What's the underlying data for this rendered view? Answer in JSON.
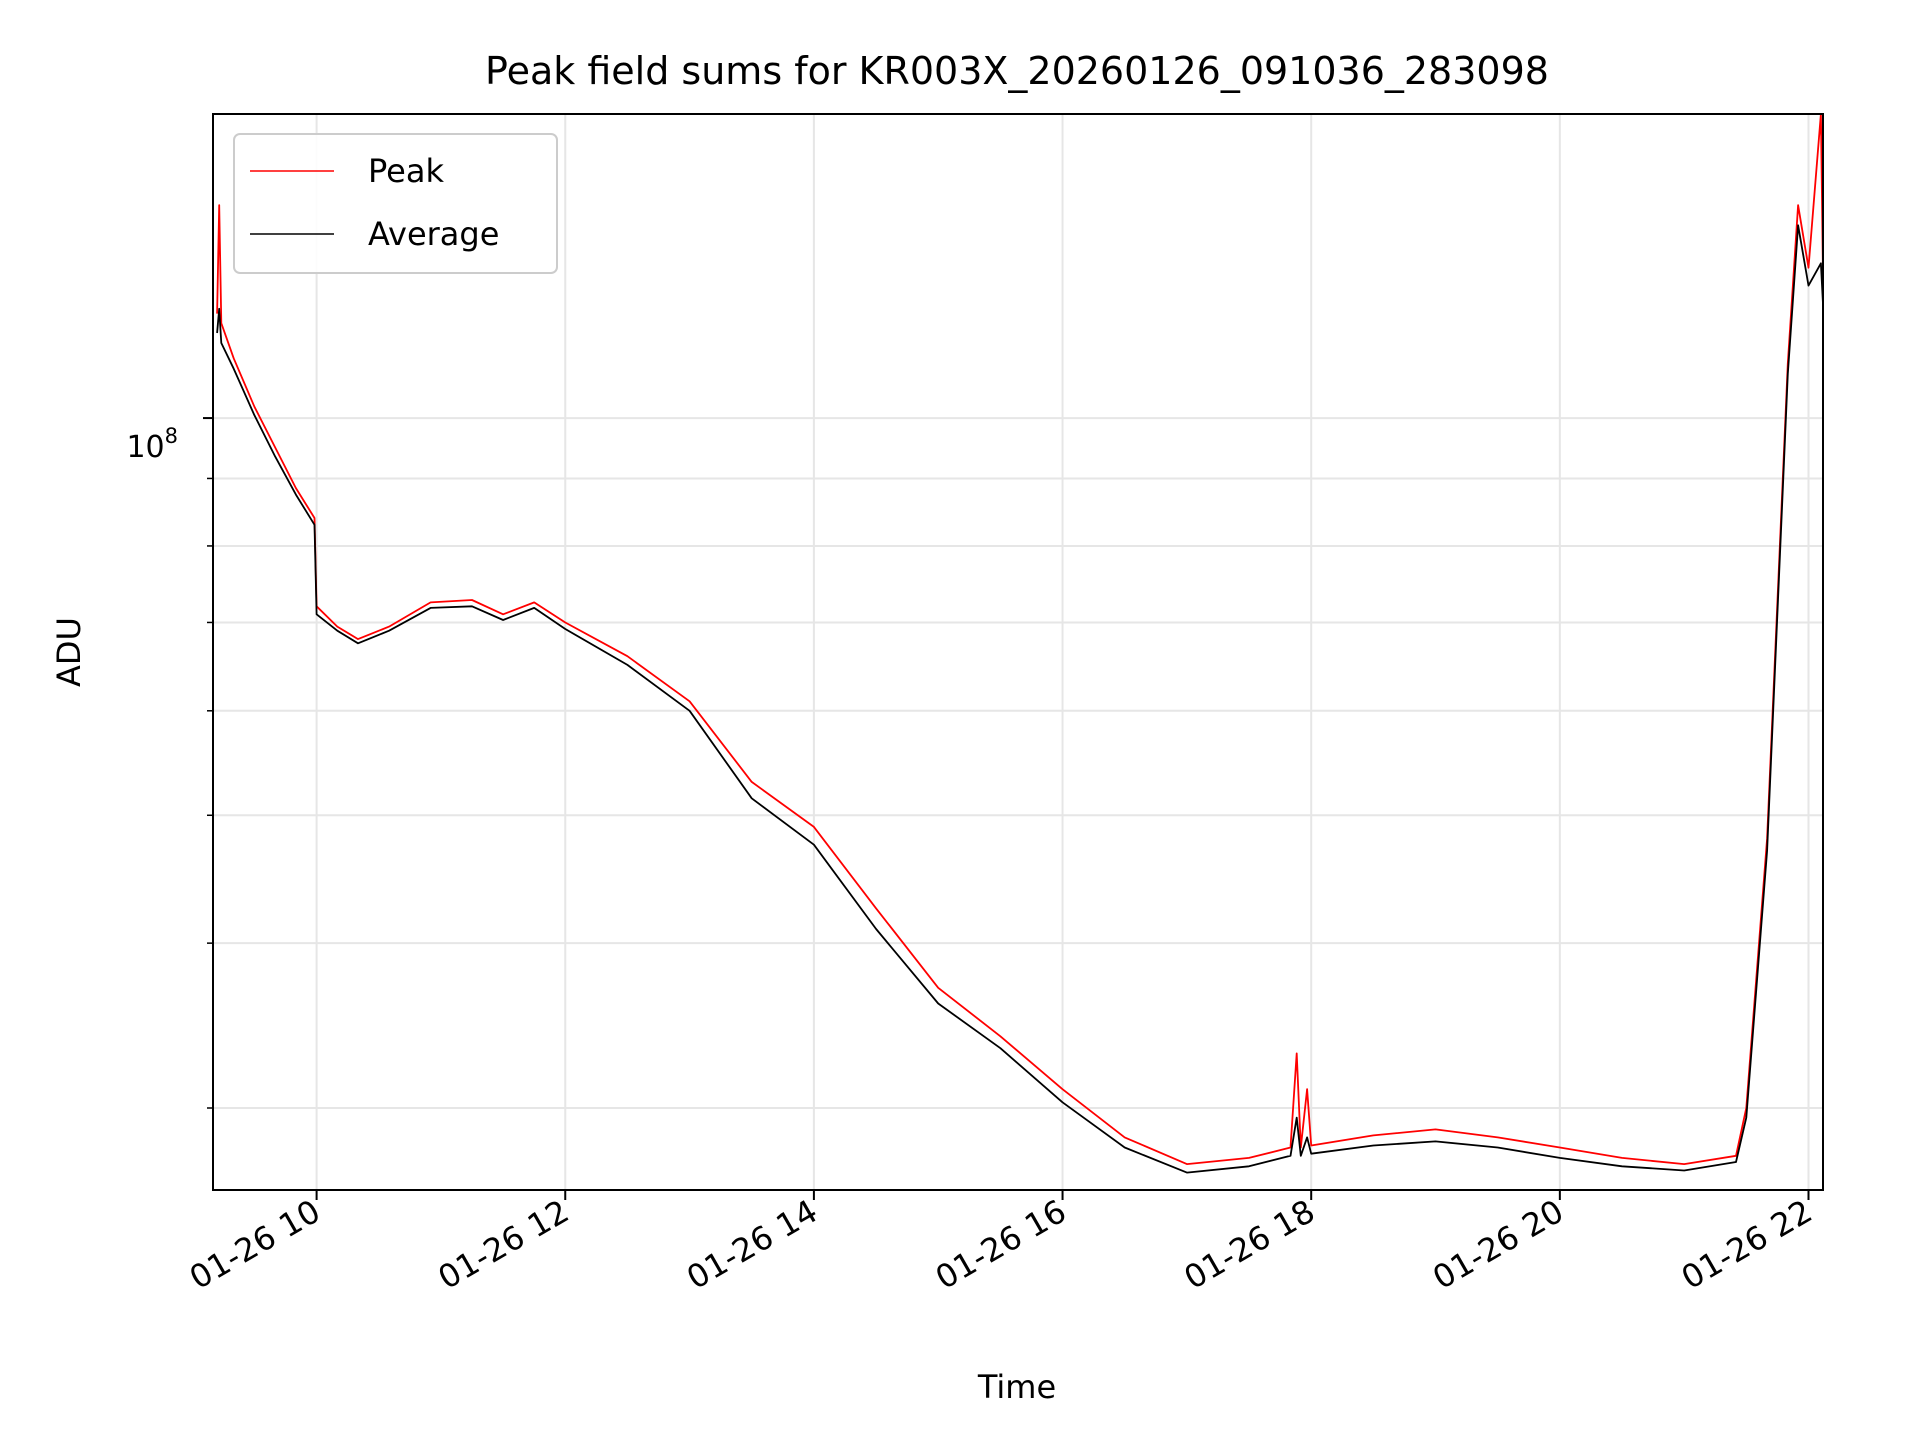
{
  "chart_data": {
    "type": "line",
    "title": "Peak field sums for KR003X_20260126_091036_283098",
    "xlabel": "Time",
    "ylabel": "ADU",
    "x_tick_labels": [
      "01-26 10",
      "01-26 12",
      "01-26 14",
      "01-26 16",
      "01-26 18",
      "01-26 20",
      "01-26 22"
    ],
    "y_tick_label_base": "10",
    "y_tick_label_exp": "8",
    "y_scale": "log",
    "xlim": [
      "2026-01-26 09:10",
      "2026-01-26 22:07"
    ],
    "ylim": [
      26000000,
      170000000
    ],
    "grid": true,
    "legend_position": "upper-left",
    "series": [
      {
        "name": "Peak",
        "color": "#ff0000",
        "points": [
          [
            "2026-01-26 09:12",
            120000000
          ],
          [
            "2026-01-26 09:13",
            145000000
          ],
          [
            "2026-01-26 09:14",
            118000000
          ],
          [
            "2026-01-26 09:20",
            111000000
          ],
          [
            "2026-01-26 09:30",
            102000000
          ],
          [
            "2026-01-26 09:40",
            95000000
          ],
          [
            "2026-01-26 09:50",
            88500000
          ],
          [
            "2026-01-26 09:59",
            84000000
          ],
          [
            "2026-01-26 10:00",
            72000000
          ],
          [
            "2026-01-26 10:10",
            69500000
          ],
          [
            "2026-01-26 10:20",
            68000000
          ],
          [
            "2026-01-26 10:35",
            69500000
          ],
          [
            "2026-01-26 10:55",
            72500000
          ],
          [
            "2026-01-26 11:15",
            72800000
          ],
          [
            "2026-01-26 11:30",
            71000000
          ],
          [
            "2026-01-26 11:45",
            72500000
          ],
          [
            "2026-01-26 12:00",
            70000000
          ],
          [
            "2026-01-26 12:30",
            66000000
          ],
          [
            "2026-01-26 13:00",
            61000000
          ],
          [
            "2026-01-26 13:30",
            53000000
          ],
          [
            "2026-01-26 14:00",
            49000000
          ],
          [
            "2026-01-26 14:30",
            42500000
          ],
          [
            "2026-01-26 15:00",
            37000000
          ],
          [
            "2026-01-26 15:30",
            34000000
          ],
          [
            "2026-01-26 16:00",
            31000000
          ],
          [
            "2026-01-26 16:30",
            28500000
          ],
          [
            "2026-01-26 17:00",
            27200000
          ],
          [
            "2026-01-26 17:30",
            27500000
          ],
          [
            "2026-01-26 17:50",
            28000000
          ],
          [
            "2026-01-26 17:53",
            33000000
          ],
          [
            "2026-01-26 17:55",
            28000000
          ],
          [
            "2026-01-26 17:58",
            31000000
          ],
          [
            "2026-01-26 18:00",
            28100000
          ],
          [
            "2026-01-26 18:30",
            28600000
          ],
          [
            "2026-01-26 19:00",
            28900000
          ],
          [
            "2026-01-26 19:30",
            28500000
          ],
          [
            "2026-01-26 20:00",
            28000000
          ],
          [
            "2026-01-26 20:30",
            27500000
          ],
          [
            "2026-01-26 21:00",
            27200000
          ],
          [
            "2026-01-26 21:25",
            27600000
          ],
          [
            "2026-01-26 21:30",
            30000000
          ],
          [
            "2026-01-26 21:40",
            48000000
          ],
          [
            "2026-01-26 21:50",
            110000000
          ],
          [
            "2026-01-26 21:55",
            145000000
          ],
          [
            "2026-01-26 22:00",
            130000000
          ],
          [
            "2026-01-26 22:06",
            170000000
          ],
          [
            "2026-01-26 22:07",
            128000000
          ]
        ]
      },
      {
        "name": "Average",
        "color": "#000000",
        "points": [
          [
            "2026-01-26 09:12",
            116000000
          ],
          [
            "2026-01-26 09:13",
            121000000
          ],
          [
            "2026-01-26 09:14",
            114000000
          ],
          [
            "2026-01-26 09:20",
            109000000
          ],
          [
            "2026-01-26 09:30",
            100500000
          ],
          [
            "2026-01-26 09:40",
            93500000
          ],
          [
            "2026-01-26 09:50",
            87500000
          ],
          [
            "2026-01-26 09:59",
            83000000
          ],
          [
            "2026-01-26 10:00",
            71000000
          ],
          [
            "2026-01-26 10:10",
            69000000
          ],
          [
            "2026-01-26 10:20",
            67500000
          ],
          [
            "2026-01-26 10:35",
            69000000
          ],
          [
            "2026-01-26 10:55",
            71800000
          ],
          [
            "2026-01-26 11:15",
            72000000
          ],
          [
            "2026-01-26 11:30",
            70300000
          ],
          [
            "2026-01-26 11:45",
            71800000
          ],
          [
            "2026-01-26 12:00",
            69200000
          ],
          [
            "2026-01-26 12:30",
            65000000
          ],
          [
            "2026-01-26 13:00",
            60000000
          ],
          [
            "2026-01-26 13:30",
            51500000
          ],
          [
            "2026-01-26 14:00",
            47500000
          ],
          [
            "2026-01-26 14:30",
            41000000
          ],
          [
            "2026-01-26 15:00",
            36000000
          ],
          [
            "2026-01-26 15:30",
            33300000
          ],
          [
            "2026-01-26 16:00",
            30300000
          ],
          [
            "2026-01-26 16:30",
            28000000
          ],
          [
            "2026-01-26 17:00",
            26800000
          ],
          [
            "2026-01-26 17:30",
            27100000
          ],
          [
            "2026-01-26 17:50",
            27600000
          ],
          [
            "2026-01-26 17:53",
            29500000
          ],
          [
            "2026-01-26 17:55",
            27600000
          ],
          [
            "2026-01-26 17:58",
            28500000
          ],
          [
            "2026-01-26 18:00",
            27700000
          ],
          [
            "2026-01-26 18:30",
            28100000
          ],
          [
            "2026-01-26 19:00",
            28300000
          ],
          [
            "2026-01-26 19:30",
            28000000
          ],
          [
            "2026-01-26 20:00",
            27500000
          ],
          [
            "2026-01-26 20:30",
            27100000
          ],
          [
            "2026-01-26 21:00",
            26900000
          ],
          [
            "2026-01-26 21:25",
            27300000
          ],
          [
            "2026-01-26 21:30",
            29500000
          ],
          [
            "2026-01-26 21:40",
            47000000
          ],
          [
            "2026-01-26 21:50",
            108000000
          ],
          [
            "2026-01-26 21:55",
            140000000
          ],
          [
            "2026-01-26 22:00",
            126000000
          ],
          [
            "2026-01-26 22:06",
            131000000
          ],
          [
            "2026-01-26 22:07",
            122000000
          ]
        ]
      }
    ]
  }
}
